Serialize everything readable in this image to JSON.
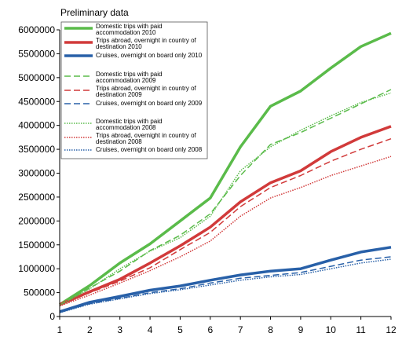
{
  "chart_data": {
    "type": "line",
    "title": "Preliminary data",
    "x": [
      1,
      2,
      3,
      4,
      5,
      6,
      7,
      8,
      9,
      10,
      11,
      12
    ],
    "ylim": [
      0,
      6000000
    ],
    "yticks": [
      0,
      500000,
      1000000,
      1500000,
      2000000,
      2500000,
      3000000,
      3500000,
      4000000,
      4500000,
      5000000,
      5500000,
      6000000
    ],
    "grid": false,
    "legend_placement": "top-left inside",
    "series": [
      {
        "name_lines": [
          "Domestic trips with paid",
          "accommodation  2010"
        ],
        "color": "#5abb4a",
        "style": "solid",
        "width": 3.5,
        "values": [
          250000,
          650000,
          1120000,
          1520000,
          2000000,
          2480000,
          3550000,
          4400000,
          4720000,
          5200000,
          5650000,
          5930000
        ]
      },
      {
        "name_lines": [
          "Trips abroad, overnight in country of",
          "destination  2010"
        ],
        "color": "#d13a3a",
        "style": "solid",
        "width": 3.5,
        "values": [
          250000,
          520000,
          780000,
          1120000,
          1480000,
          1870000,
          2400000,
          2800000,
          3050000,
          3450000,
          3750000,
          3980000
        ]
      },
      {
        "name_lines": [
          "Cruises, overnight on board  only 2010"
        ],
        "color": "#2860a8",
        "style": "solid",
        "width": 3.5,
        "values": [
          100000,
          300000,
          420000,
          550000,
          640000,
          760000,
          870000,
          950000,
          1000000,
          1180000,
          1350000,
          1450000
        ]
      },
      {
        "name_lines": [
          "Domestic trips with paid",
          "accommodation  2009"
        ],
        "color": "#5abb4a",
        "style": "dashed",
        "width": 1.5,
        "values": [
          240000,
          600000,
          950000,
          1380000,
          1700000,
          2150000,
          2950000,
          3600000,
          3850000,
          4150000,
          4450000,
          4750000
        ]
      },
      {
        "name_lines": [
          "Trips abroad, overnight in country of",
          "destination  2009"
        ],
        "color": "#d13a3a",
        "style": "dashed",
        "width": 1.5,
        "values": [
          230000,
          500000,
          740000,
          1020000,
          1400000,
          1760000,
          2300000,
          2700000,
          2950000,
          3250000,
          3500000,
          3720000
        ]
      },
      {
        "name_lines": [
          "Cruises, overnight on board  only 2009"
        ],
        "color": "#2860a8",
        "style": "dashed",
        "width": 1.5,
        "values": [
          90000,
          270000,
          380000,
          500000,
          580000,
          700000,
          800000,
          860000,
          920000,
          1050000,
          1180000,
          1250000
        ]
      },
      {
        "name_lines": [
          "Domestic trips with paid",
          "accommodation  2008"
        ],
        "color": "#5abb4a",
        "style": "dotted",
        "width": 1.5,
        "values": [
          230000,
          580000,
          1000000,
          1370000,
          1650000,
          2100000,
          3050000,
          3550000,
          3900000,
          4200000,
          4480000,
          4680000
        ]
      },
      {
        "name_lines": [
          "Trips abroad, overnight in country of",
          "destination  2008"
        ],
        "color": "#d13a3a",
        "style": "dotted",
        "width": 1.5,
        "values": [
          220000,
          450000,
          700000,
          960000,
          1250000,
          1580000,
          2100000,
          2480000,
          2700000,
          2950000,
          3150000,
          3350000
        ]
      },
      {
        "name_lines": [
          "Cruises, overnight on board  only 2008"
        ],
        "color": "#2860a8",
        "style": "dotted",
        "width": 1.5,
        "values": [
          80000,
          260000,
          370000,
          480000,
          560000,
          660000,
          760000,
          830000,
          880000,
          1000000,
          1120000,
          1200000
        ]
      }
    ]
  }
}
